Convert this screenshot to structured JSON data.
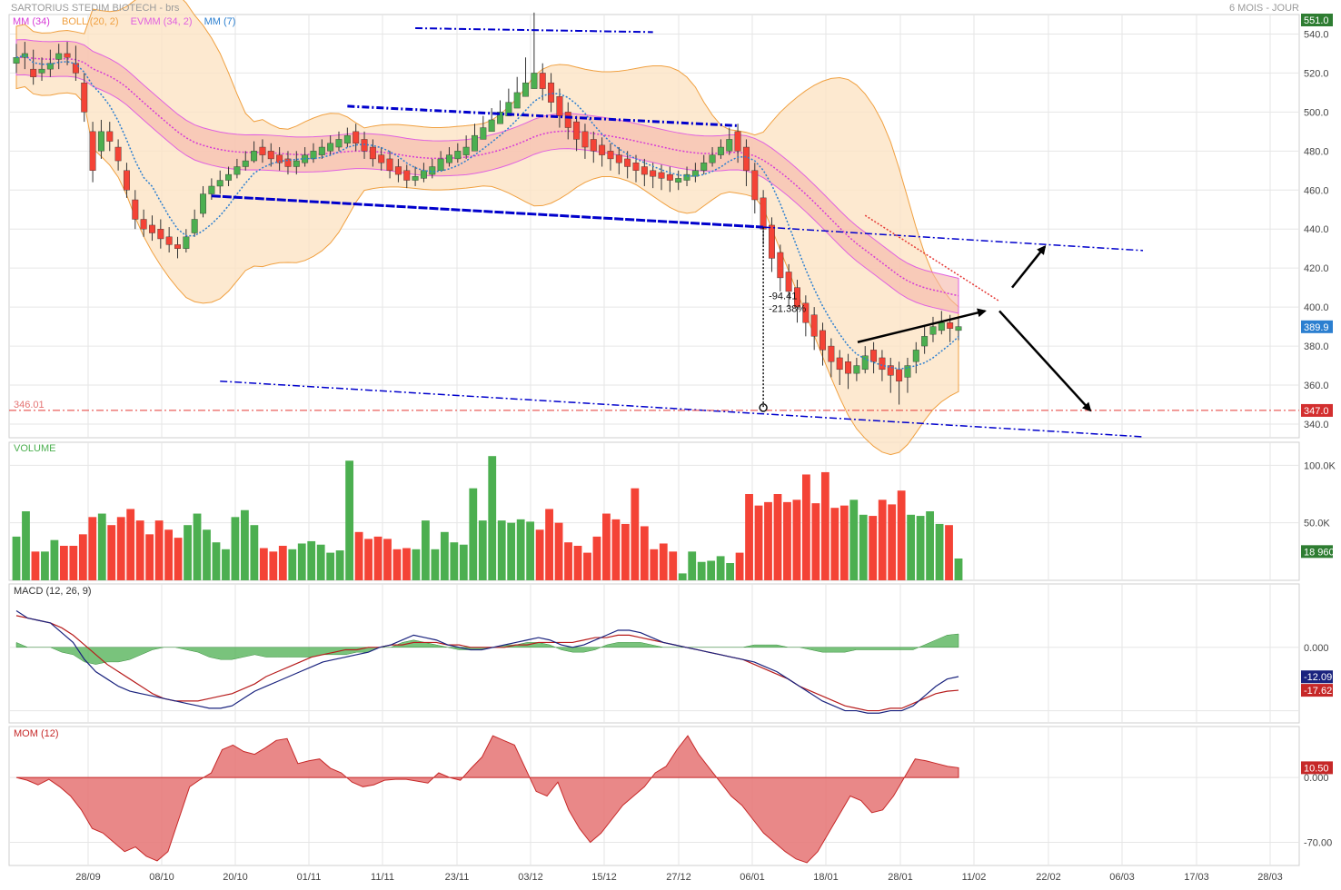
{
  "header": {
    "title": "SARTORIUS STEDIM BIOTECH - brs",
    "period": "6 MOIS - JOUR",
    "legend": [
      {
        "label": "MM (34)",
        "color": "#d63ad6"
      },
      {
        "label": "BOLL (20, 2)",
        "color": "#f0a040"
      },
      {
        "label": "EVMM (34, 2)",
        "color": "#e060e0"
      },
      {
        "label": "MM (7)",
        "color": "#2b7fd0"
      }
    ]
  },
  "panels": {
    "volume_title": "VOLUME",
    "macd_title": "MACD (12, 26, 9)",
    "mom_title": "MOM (12)"
  },
  "colors": {
    "up": "#4caf50",
    "down": "#f44336",
    "trend": "#0000cc",
    "support": "#e53935",
    "grid": "#e6e6e6"
  },
  "chart_data": [
    {
      "type": "candlestick",
      "title": "SARTORIUS STEDIM BIOTECH - brs",
      "ylim": [
        333,
        550
      ],
      "yticks": [
        340,
        360,
        380,
        400,
        420,
        440,
        460,
        480,
        500,
        520,
        540
      ],
      "ytick_labels": [
        "340.0",
        "360.0",
        "380.0",
        "400.0",
        "420.0",
        "440.0",
        "460.0",
        "480.0",
        "500.0",
        "520.0",
        "540.0"
      ],
      "x_labels": [
        "28/09",
        "08/10",
        "20/10",
        "01/11",
        "11/11",
        "23/11",
        "03/12",
        "15/12",
        "27/12",
        "06/01",
        "18/01",
        "28/01",
        "11/02",
        "22/02",
        "06/03",
        "17/03",
        "28/03"
      ],
      "last_price": "389.9",
      "high_marker": "551.0",
      "support_level": 347.0,
      "support_label_left": "346.01",
      "support_label_right": "347.0",
      "annotation": {
        "lines": [
          "-94.41",
          "-21.38%"
        ]
      },
      "close": [
        528,
        530,
        518,
        522,
        525,
        530,
        528,
        520,
        500,
        470,
        490,
        485,
        475,
        460,
        445,
        440,
        438,
        435,
        432,
        430,
        436,
        445,
        458,
        462,
        465,
        468,
        472,
        475,
        480,
        478,
        476,
        474,
        472,
        475,
        478,
        480,
        482,
        484,
        486,
        488,
        484,
        480,
        476,
        474,
        470,
        468,
        465,
        467,
        470,
        472,
        476,
        478,
        480,
        482,
        488,
        492,
        496,
        500,
        505,
        510,
        515,
        520,
        512,
        505,
        498,
        492,
        486,
        482,
        480,
        478,
        476,
        474,
        472,
        470,
        468,
        467,
        466,
        465,
        466,
        468,
        470,
        474,
        478,
        482,
        486,
        480,
        470,
        455,
        440,
        425,
        415,
        408,
        400,
        392,
        385,
        378,
        372,
        368,
        366,
        370,
        375,
        372,
        368,
        365,
        362,
        370,
        378,
        385,
        390,
        392,
        389,
        390
      ],
      "open": [
        525,
        528,
        522,
        520,
        522,
        527,
        530,
        525,
        515,
        490,
        480,
        490,
        482,
        470,
        455,
        445,
        442,
        440,
        436,
        432,
        430,
        438,
        448,
        458,
        462,
        465,
        468,
        472,
        475,
        482,
        480,
        478,
        476,
        472,
        474,
        476,
        478,
        480,
        482,
        484,
        490,
        486,
        482,
        478,
        476,
        472,
        470,
        465,
        466,
        468,
        470,
        474,
        476,
        478,
        480,
        486,
        490,
        494,
        498,
        502,
        508,
        512,
        520,
        515,
        508,
        500,
        495,
        490,
        486,
        483,
        480,
        478,
        476,
        474,
        472,
        470,
        469,
        468,
        464,
        465,
        467,
        470,
        474,
        478,
        480,
        490,
        482,
        470,
        456,
        442,
        428,
        418,
        410,
        402,
        396,
        388,
        380,
        374,
        372,
        366,
        368,
        378,
        374,
        370,
        368,
        364,
        372,
        380,
        386,
        388,
        392,
        388
      ],
      "high": [
        535,
        536,
        532,
        528,
        532,
        535,
        536,
        534,
        520,
        495,
        496,
        495,
        486,
        474,
        460,
        450,
        447,
        445,
        441,
        436,
        440,
        450,
        462,
        466,
        470,
        472,
        476,
        480,
        485,
        486,
        484,
        482,
        480,
        480,
        482,
        484,
        486,
        488,
        490,
        492,
        494,
        490,
        486,
        482,
        480,
        476,
        473,
        472,
        474,
        476,
        480,
        482,
        484,
        488,
        494,
        498,
        502,
        506,
        512,
        518,
        528,
        551,
        525,
        520,
        512,
        505,
        498,
        494,
        490,
        487,
        484,
        482,
        480,
        478,
        476,
        474,
        473,
        472,
        470,
        472,
        474,
        478,
        482,
        486,
        492,
        494,
        486,
        474,
        460,
        446,
        432,
        422,
        414,
        406,
        400,
        392,
        384,
        378,
        376,
        374,
        380,
        382,
        378,
        374,
        372,
        374,
        382,
        390,
        395,
        398,
        396,
        394
      ],
      "low": [
        520,
        522,
        514,
        516,
        518,
        522,
        524,
        516,
        495,
        464,
        476,
        480,
        470,
        456,
        440,
        436,
        434,
        430,
        428,
        425,
        428,
        436,
        446,
        455,
        458,
        462,
        466,
        470,
        474,
        474,
        472,
        470,
        468,
        468,
        472,
        474,
        476,
        478,
        480,
        482,
        480,
        476,
        472,
        470,
        466,
        464,
        461,
        462,
        464,
        466,
        470,
        472,
        474,
        476,
        482,
        486,
        490,
        494,
        498,
        504,
        508,
        512,
        506,
        500,
        492,
        486,
        480,
        476,
        474,
        472,
        470,
        468,
        466,
        464,
        462,
        461,
        460,
        459,
        460,
        462,
        464,
        468,
        472,
        476,
        478,
        474,
        462,
        448,
        432,
        418,
        408,
        400,
        392,
        385,
        378,
        370,
        364,
        360,
        358,
        362,
        366,
        366,
        362,
        356,
        350,
        356,
        366,
        376,
        382,
        386,
        382,
        383
      ]
    },
    {
      "type": "bar",
      "title": "VOLUME",
      "ylim": [
        0,
        120000
      ],
      "yticks": [
        50000,
        100000
      ],
      "ytick_labels": [
        "50.0K",
        "100.0K"
      ],
      "last_value": "18 960",
      "values": [
        38000,
        60000,
        25000,
        25000,
        35000,
        30000,
        30000,
        40000,
        55000,
        58000,
        48000,
        55000,
        62000,
        52000,
        40000,
        52000,
        44000,
        37000,
        48000,
        58000,
        44000,
        33000,
        27000,
        55000,
        61000,
        48000,
        28000,
        25000,
        30000,
        27000,
        32000,
        34000,
        31000,
        24000,
        26000,
        104000,
        42000,
        36000,
        38000,
        36000,
        27000,
        28000,
        27000,
        52000,
        27000,
        42000,
        33000,
        31000,
        80000,
        52000,
        108000,
        52000,
        50000,
        53000,
        51000,
        44000,
        62000,
        50000,
        33000,
        30000,
        24000,
        38000,
        58000,
        53000,
        49000,
        80000,
        47000,
        27000,
        32000,
        25000,
        6000,
        25000,
        16000,
        17000,
        21000,
        15000,
        24000,
        75000,
        65000,
        68000,
        75000,
        68000,
        70000,
        92000,
        67000,
        94000,
        63000,
        65000,
        70000,
        57000,
        56000,
        70000,
        66000,
        78000,
        57000,
        56000,
        60000,
        49000,
        48000,
        18960
      ]
    },
    {
      "type": "line",
      "title": "MACD (12, 26, 9)",
      "ylim": [
        -31,
        26
      ],
      "yticks": [
        0
      ],
      "ytick_labels": [
        "0.000"
      ],
      "last_macd": "-12.09",
      "last_signal": "-17.62",
      "series": [
        {
          "name": "MACD",
          "values": [
            15,
            12,
            11,
            10,
            6,
            2,
            -5,
            -10,
            -13,
            -16,
            -18,
            -19,
            -20,
            -21,
            -22,
            -23,
            -24,
            -25,
            -25,
            -24,
            -21,
            -18,
            -16,
            -14,
            -12,
            -10,
            -8,
            -6,
            -5,
            -4,
            -3,
            -2,
            0,
            1,
            3,
            5,
            4,
            3,
            1,
            0,
            -1,
            -1,
            0,
            1,
            2,
            3,
            4,
            3,
            1,
            0,
            1,
            3,
            5,
            7,
            7,
            6,
            4,
            2,
            1,
            0,
            -1,
            -2,
            -3,
            -4,
            -5,
            -6,
            -8,
            -10,
            -13,
            -16,
            -19,
            -22,
            -24,
            -26,
            -26,
            -27,
            -27,
            -26,
            -26,
            -24,
            -20,
            -16,
            -13,
            -12
          ]
        },
        {
          "name": "Signal",
          "values": [
            13,
            12,
            11,
            10,
            8,
            5,
            1,
            -3,
            -7,
            -10,
            -13,
            -16,
            -19,
            -21,
            -22,
            -22,
            -22,
            -21,
            -20,
            -19,
            -17,
            -15,
            -12,
            -10,
            -8,
            -6,
            -4,
            -3,
            -2,
            -1,
            -1,
            0,
            0,
            1,
            1,
            2,
            2,
            2,
            1,
            1,
            0,
            0,
            0,
            0,
            1,
            1,
            2,
            2,
            2,
            2,
            3,
            4,
            4,
            5,
            5,
            4,
            3,
            2,
            1,
            0,
            -1,
            -2,
            -3,
            -4,
            -5,
            -7,
            -9,
            -11,
            -13,
            -16,
            -18,
            -20,
            -22,
            -24,
            -25,
            -26,
            -26,
            -25,
            -25,
            -23,
            -21,
            -19,
            -18,
            -17.62
          ]
        },
        {
          "name": "Histogram",
          "values": [
            2,
            0,
            0,
            0,
            -2,
            -3,
            -6,
            -7,
            -6,
            -6,
            -5,
            -3,
            -1,
            0,
            0,
            -1,
            -2,
            -4,
            -5,
            -5,
            -4,
            -3,
            -4,
            -4,
            -4,
            -4,
            -4,
            -3,
            -3,
            -3,
            -2,
            -2,
            0,
            0,
            2,
            3,
            2,
            1,
            0,
            -1,
            -1,
            -1,
            0,
            1,
            1,
            2,
            2,
            1,
            -1,
            -2,
            -2,
            -1,
            1,
            2,
            2,
            2,
            1,
            0,
            0,
            0,
            0,
            0,
            0,
            0,
            0,
            1,
            1,
            1,
            0,
            0,
            -1,
            -2,
            -2,
            -2,
            -1,
            -1,
            -1,
            -1,
            -1,
            -1,
            1,
            3,
            5,
            5.5
          ]
        }
      ]
    },
    {
      "type": "area",
      "title": "MOM (12)",
      "ylim": [
        -95,
        55
      ],
      "yticks": [
        0,
        -70
      ],
      "ytick_labels": [
        "0.000",
        "-70.00"
      ],
      "last_value": "10.50",
      "values": [
        0,
        -3,
        -8,
        -2,
        -10,
        -20,
        -35,
        -55,
        -60,
        -70,
        -80,
        -75,
        -85,
        -90,
        -80,
        -45,
        -10,
        -2,
        5,
        30,
        35,
        28,
        25,
        32,
        40,
        42,
        15,
        18,
        20,
        10,
        5,
        -5,
        -10,
        -8,
        -3,
        -2,
        -2,
        -4,
        -6,
        5,
        0,
        -3,
        10,
        22,
        45,
        40,
        35,
        10,
        -15,
        -20,
        -5,
        -35,
        -55,
        -70,
        -60,
        -45,
        -30,
        -20,
        -10,
        5,
        12,
        30,
        45,
        25,
        10,
        -5,
        -20,
        -30,
        -45,
        -60,
        -70,
        -80,
        -88,
        -92,
        -80,
        -60,
        -40,
        -20,
        -25,
        -38,
        -35,
        -20,
        0,
        20,
        18,
        15,
        12,
        10.5
      ]
    }
  ]
}
